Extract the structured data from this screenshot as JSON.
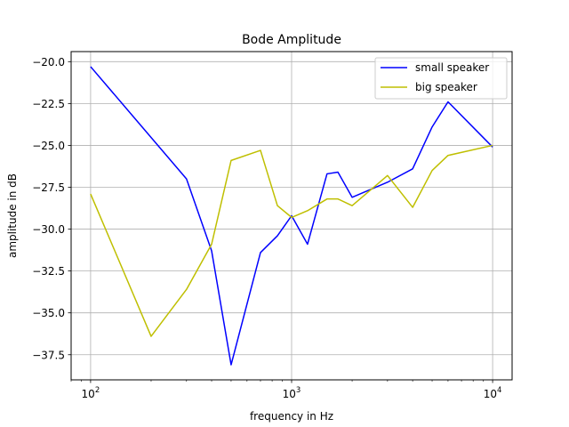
{
  "chart_data": {
    "type": "line",
    "title": "Bode Amplitude",
    "xlabel": "frequency in Hz",
    "ylabel": "amplitude in dB",
    "xscale": "log",
    "xlim": [
      80,
      12500
    ],
    "ylim": [
      -39.0,
      -19.4
    ],
    "grid": true,
    "legend_position": "top-right",
    "x_ticks": [
      {
        "value": 100,
        "base": "10",
        "exp": "2"
      },
      {
        "value": 1000,
        "base": "10",
        "exp": "3"
      },
      {
        "value": 10000,
        "base": "10",
        "exp": "4"
      }
    ],
    "y_ticks": [
      {
        "value": -20.0,
        "label": "−20.0"
      },
      {
        "value": -22.5,
        "label": "−22.5"
      },
      {
        "value": -25.0,
        "label": "−25.0"
      },
      {
        "value": -27.5,
        "label": "−27.5"
      },
      {
        "value": -30.0,
        "label": "−30.0"
      },
      {
        "value": -32.5,
        "label": "−32.5"
      },
      {
        "value": -35.0,
        "label": "−35.0"
      },
      {
        "value": -37.5,
        "label": "−37.5"
      }
    ],
    "series": [
      {
        "name": "small speaker",
        "color": "#0000ff",
        "x": [
          100,
          300,
          400,
          500,
          700,
          850,
          1000,
          1200,
          1500,
          1700,
          2000,
          3000,
          4000,
          5000,
          6000,
          10000
        ],
        "y": [
          -20.3,
          -27.0,
          -31.3,
          -38.1,
          -31.4,
          -30.4,
          -29.2,
          -30.9,
          -26.7,
          -26.6,
          -28.1,
          -27.2,
          -26.4,
          -23.9,
          -22.4,
          -25.1
        ]
      },
      {
        "name": "big speaker",
        "color": "#bfbf00",
        "x": [
          100,
          200,
          300,
          400,
          500,
          700,
          850,
          1000,
          1200,
          1500,
          1700,
          2000,
          3000,
          4000,
          5000,
          6000,
          10000
        ],
        "y": [
          -27.9,
          -36.4,
          -33.6,
          -30.9,
          -25.9,
          -25.3,
          -28.6,
          -29.3,
          -28.9,
          -28.2,
          -28.2,
          -28.6,
          -26.8,
          -28.7,
          -26.5,
          -25.6,
          -25.0
        ]
      }
    ]
  }
}
